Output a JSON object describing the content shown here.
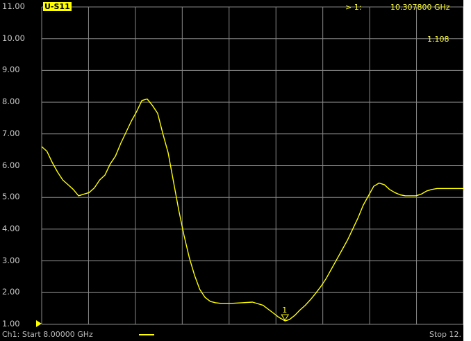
{
  "trace_label": "U-S11",
  "marker_readout": {
    "label": "> 1:",
    "frequency": "10.307800 GHz",
    "value": "1.108"
  },
  "marker_number": "1",
  "footer": {
    "start": "Ch1: Start  8.00000 GHz",
    "stop": "Stop  12."
  },
  "colors": {
    "trace": "#ffff00",
    "grid": "#8a8a8a",
    "background": "#000000"
  },
  "chart_data": {
    "type": "line",
    "title": "",
    "xlabel": "",
    "ylabel": "",
    "ylim": [
      1.0,
      11.0
    ],
    "xlim": [
      8.0,
      12.0
    ],
    "y_ticks": [
      "11.00",
      "10.00",
      "9.00",
      "8.00",
      "7.00",
      "6.00",
      "5.00",
      "4.00",
      "3.00",
      "2.00",
      "1.00"
    ],
    "grid": true,
    "series": [
      {
        "x": [
          8.0,
          8.05,
          8.1,
          8.15,
          8.2,
          8.25,
          8.3,
          8.35,
          8.4,
          8.45,
          8.5,
          8.55,
          8.6,
          8.65,
          8.7,
          8.75,
          8.8,
          8.85,
          8.9,
          8.95,
          9.0,
          9.05,
          9.1,
          9.15,
          9.2,
          9.25,
          9.3,
          9.35,
          9.4,
          9.45,
          9.5,
          9.55,
          9.6,
          9.65,
          9.7,
          9.8,
          9.9,
          10.0,
          10.1,
          10.2,
          10.25,
          10.31,
          10.35,
          10.4,
          10.45,
          10.5,
          10.55,
          10.6,
          10.65,
          10.7,
          10.75,
          10.8,
          10.85,
          10.9,
          10.95,
          11.0,
          11.05,
          11.1,
          11.15,
          11.2,
          11.25,
          11.3,
          11.35,
          11.4,
          11.45,
          11.5,
          11.55,
          11.6,
          11.65,
          11.7,
          11.75,
          11.8,
          11.85,
          11.9,
          11.95,
          12.0
        ],
        "values": [
          6.6,
          6.45,
          6.1,
          5.8,
          5.55,
          5.4,
          5.25,
          5.05,
          5.1,
          5.15,
          5.3,
          5.55,
          5.7,
          6.05,
          6.3,
          6.7,
          7.05,
          7.4,
          7.7,
          8.05,
          8.1,
          7.9,
          7.65,
          7.0,
          6.4,
          5.5,
          4.6,
          3.8,
          3.1,
          2.55,
          2.1,
          1.85,
          1.72,
          1.68,
          1.66,
          1.66,
          1.68,
          1.7,
          1.6,
          1.35,
          1.22,
          1.108,
          1.15,
          1.28,
          1.45,
          1.6,
          1.78,
          1.98,
          2.2,
          2.45,
          2.75,
          3.05,
          3.35,
          3.65,
          4.0,
          4.35,
          4.75,
          5.05,
          5.35,
          5.45,
          5.4,
          5.25,
          5.15,
          5.08,
          5.05,
          5.05,
          5.05,
          5.1,
          5.2,
          5.25,
          5.28,
          5.28,
          5.28,
          5.28,
          5.28,
          5.28
        ]
      }
    ],
    "marker": {
      "x": 10.3078,
      "y": 1.108
    }
  }
}
